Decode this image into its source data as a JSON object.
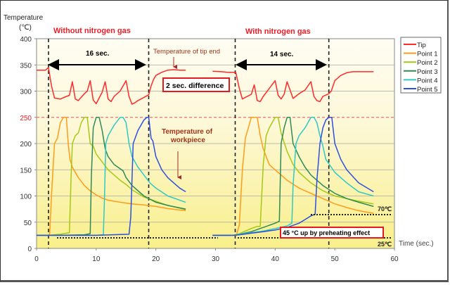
{
  "chart_data": {
    "type": "line",
    "ylabel_line1": "Temperature",
    "ylabel_line2": "(℃)",
    "xlabel": "Time (sec.)",
    "xlim": [
      0,
      60
    ],
    "ylim": [
      0,
      400
    ],
    "xticks": [
      "0",
      "10",
      "20",
      "30",
      "40",
      "50",
      "60"
    ],
    "yticks": [
      "0",
      "50",
      "100",
      "150",
      "200",
      "250",
      "300",
      "350",
      "400"
    ],
    "highlight_ytick": "250",
    "grid": true,
    "legend_position": "right",
    "colors": {
      "Tip": "#ff2a2a",
      "Point 1": "#ff9c1a",
      "Point 2": "#a6c817",
      "Point 3": "#2e8b57",
      "Point 4": "#2fc9c4",
      "Point 5": "#2d4fe0"
    },
    "annotations": {
      "title_left": "Without nitrogen gas",
      "title_right": "With nitrogen gas",
      "span_left": "16 sec.",
      "span_right": "14 sec.",
      "tip_label": "Temperature of tip end",
      "diff_label": "2 sec. difference",
      "workpiece_label_1": "Temperature of",
      "workpiece_label_2": "workpiece",
      "label_70": "70℃",
      "label_25": "25℃",
      "preheat_label": "45 °C up by preheating effect"
    },
    "vlines": [
      2,
      18.8,
      33.3,
      49
    ],
    "series": [
      {
        "name": "Tip",
        "x": [
          0,
          1.5,
          2,
          2.5,
          3,
          4,
          5,
          5.5,
          6,
          6.5,
          7,
          8,
          8.5,
          9,
          9.5,
          10,
          11,
          11.5,
          12,
          12.5,
          13,
          14,
          15,
          15.5,
          16,
          16.5,
          17,
          18,
          18.8,
          19.2,
          19.6,
          20,
          21,
          22,
          23,
          24,
          25
        ],
        "y": [
          340,
          340,
          345,
          310,
          287,
          285,
          290,
          292,
          318,
          285,
          282,
          295,
          300,
          320,
          283,
          276,
          298,
          318,
          285,
          280,
          290,
          300,
          320,
          290,
          275,
          278,
          282,
          288,
          293,
          310,
          322,
          330,
          336,
          340,
          341,
          340,
          340
        ]
      },
      {
        "name": "Tip",
        "x": [
          29.5,
          31,
          32,
          33,
          33.4,
          34,
          34.5,
          35,
          36,
          36.5,
          37,
          37.5,
          38,
          39,
          40,
          40.5,
          41,
          41.5,
          42,
          43,
          44,
          45,
          46,
          46.5,
          47,
          47.5,
          48,
          49,
          49.4,
          50,
          51,
          52,
          53,
          54,
          55,
          56.5
        ],
        "y": [
          338,
          337,
          336,
          336,
          336,
          305,
          285,
          288,
          294,
          312,
          282,
          280,
          290,
          305,
          320,
          292,
          285,
          294,
          318,
          286,
          295,
          302,
          318,
          290,
          282,
          280,
          290,
          295,
          300,
          320,
          330,
          335,
          337,
          337,
          337,
          337
        ]
      },
      {
        "name": "Point 1",
        "x": [
          0,
          1,
          2,
          2.2,
          2.5,
          3,
          3.5,
          4,
          4.5,
          5,
          5.3,
          5.6,
          6,
          6.5,
          7,
          8,
          9,
          10,
          11,
          12,
          14,
          16,
          18,
          20,
          22,
          25
        ],
        "y": [
          25,
          25,
          25,
          28,
          100,
          200,
          210,
          240,
          250,
          250,
          200,
          170,
          155,
          145,
          135,
          120,
          110,
          102,
          96,
          92,
          88,
          85,
          83,
          80,
          76,
          72
        ]
      },
      {
        "name": "Point 2",
        "x": [
          0,
          2,
          4,
          5.5,
          5.8,
          6,
          6.5,
          7,
          7.5,
          8,
          8.5,
          9,
          9.5,
          10,
          11,
          12,
          13,
          14,
          15,
          16,
          18,
          20,
          22,
          25
        ],
        "y": [
          25,
          25,
          27,
          30,
          140,
          200,
          215,
          220,
          240,
          250,
          250,
          200,
          195,
          180,
          165,
          150,
          140,
          130,
          122,
          112,
          98,
          90,
          82,
          74
        ]
      },
      {
        "name": "Point 3",
        "x": [
          0,
          4,
          8,
          9,
          9.2,
          9.5,
          10,
          10.5,
          11,
          11.5,
          12,
          13,
          14,
          14.5,
          15,
          16,
          18,
          20,
          22,
          25
        ],
        "y": [
          25,
          25,
          26,
          28,
          140,
          230,
          250,
          250,
          225,
          190,
          175,
          160,
          152,
          148,
          135,
          120,
          100,
          88,
          82,
          75
        ]
      },
      {
        "name": "Point 4",
        "x": [
          0,
          5,
          10,
          11.2,
          11.4,
          11.6,
          12,
          12.5,
          13,
          14,
          14.5,
          15,
          15.5,
          16,
          17,
          18,
          19,
          20,
          22,
          25
        ],
        "y": [
          25,
          25,
          25,
          26,
          100,
          200,
          215,
          225,
          235,
          250,
          250,
          240,
          200,
          175,
          155,
          140,
          125,
          115,
          100,
          88
        ]
      },
      {
        "name": "Point 5",
        "x": [
          0,
          5,
          10,
          15.5,
          15.8,
          16.2,
          17,
          17.5,
          18,
          18.5,
          18.8,
          19.2,
          19.5,
          20,
          21,
          22,
          23,
          24,
          25
        ],
        "y": [
          25,
          25,
          25,
          27,
          60,
          200,
          225,
          235,
          245,
          250,
          250,
          210,
          205,
          175,
          150,
          135,
          125,
          115,
          108
        ]
      },
      {
        "name": "Point 1",
        "x": [
          29.5,
          33,
          33.5,
          34,
          34.5,
          35,
          35.5,
          36,
          37,
          37.5,
          38,
          38.5,
          39,
          40,
          42,
          44,
          46,
          48,
          50,
          52,
          54,
          56.5
        ],
        "y": [
          25,
          25,
          25,
          45,
          150,
          210,
          230,
          250,
          250,
          215,
          190,
          175,
          160,
          150,
          130,
          115,
          105,
          95,
          85,
          78,
          72,
          67
        ]
      },
      {
        "name": "Point 2",
        "x": [
          29.5,
          33,
          34,
          36,
          37,
          37.5,
          38,
          38.5,
          39,
          40,
          40.5,
          41,
          42,
          43,
          44,
          46,
          48,
          50,
          52,
          54,
          56.5
        ],
        "y": [
          25,
          25,
          28,
          38,
          42,
          42,
          160,
          215,
          230,
          250,
          250,
          220,
          185,
          160,
          145,
          125,
          110,
          100,
          95,
          90,
          85
        ]
      },
      {
        "name": "Point 3",
        "x": [
          29.5,
          33,
          34,
          36,
          38,
          40,
          40.7,
          41,
          41.5,
          42,
          42.5,
          43,
          44,
          45,
          46,
          48,
          50,
          52,
          54,
          56.5
        ],
        "y": [
          25,
          25,
          27,
          32,
          40,
          48,
          52,
          200,
          230,
          250,
          250,
          200,
          175,
          155,
          140,
          120,
          105,
          95,
          88,
          80
        ]
      },
      {
        "name": "Point 4",
        "x": [
          29.5,
          33,
          34,
          36,
          38,
          40,
          42,
          42.8,
          43,
          43.5,
          44,
          45,
          46,
          46.5,
          47,
          47.5,
          48,
          48.5,
          50,
          52,
          54,
          56.5
        ],
        "y": [
          25,
          25,
          27,
          30,
          33,
          38,
          43,
          48,
          120,
          200,
          215,
          230,
          250,
          250,
          240,
          215,
          195,
          170,
          145,
          125,
          108,
          100
        ]
      },
      {
        "name": "Point 5",
        "x": [
          29.5,
          33,
          34,
          36,
          38,
          40,
          42,
          44,
          45,
          46,
          46.7,
          47,
          47.5,
          48,
          48.5,
          49,
          49.5,
          50,
          51,
          52,
          54,
          56.5
        ],
        "y": [
          25,
          25,
          26,
          29,
          32,
          35,
          40,
          48,
          55,
          62,
          65,
          130,
          200,
          230,
          245,
          250,
          250,
          200,
          170,
          150,
          125,
          108
        ]
      }
    ],
    "legend": [
      "Tip",
      "Point 1",
      "Point 2",
      "Point 3",
      "Point 4",
      "Point 5"
    ]
  }
}
